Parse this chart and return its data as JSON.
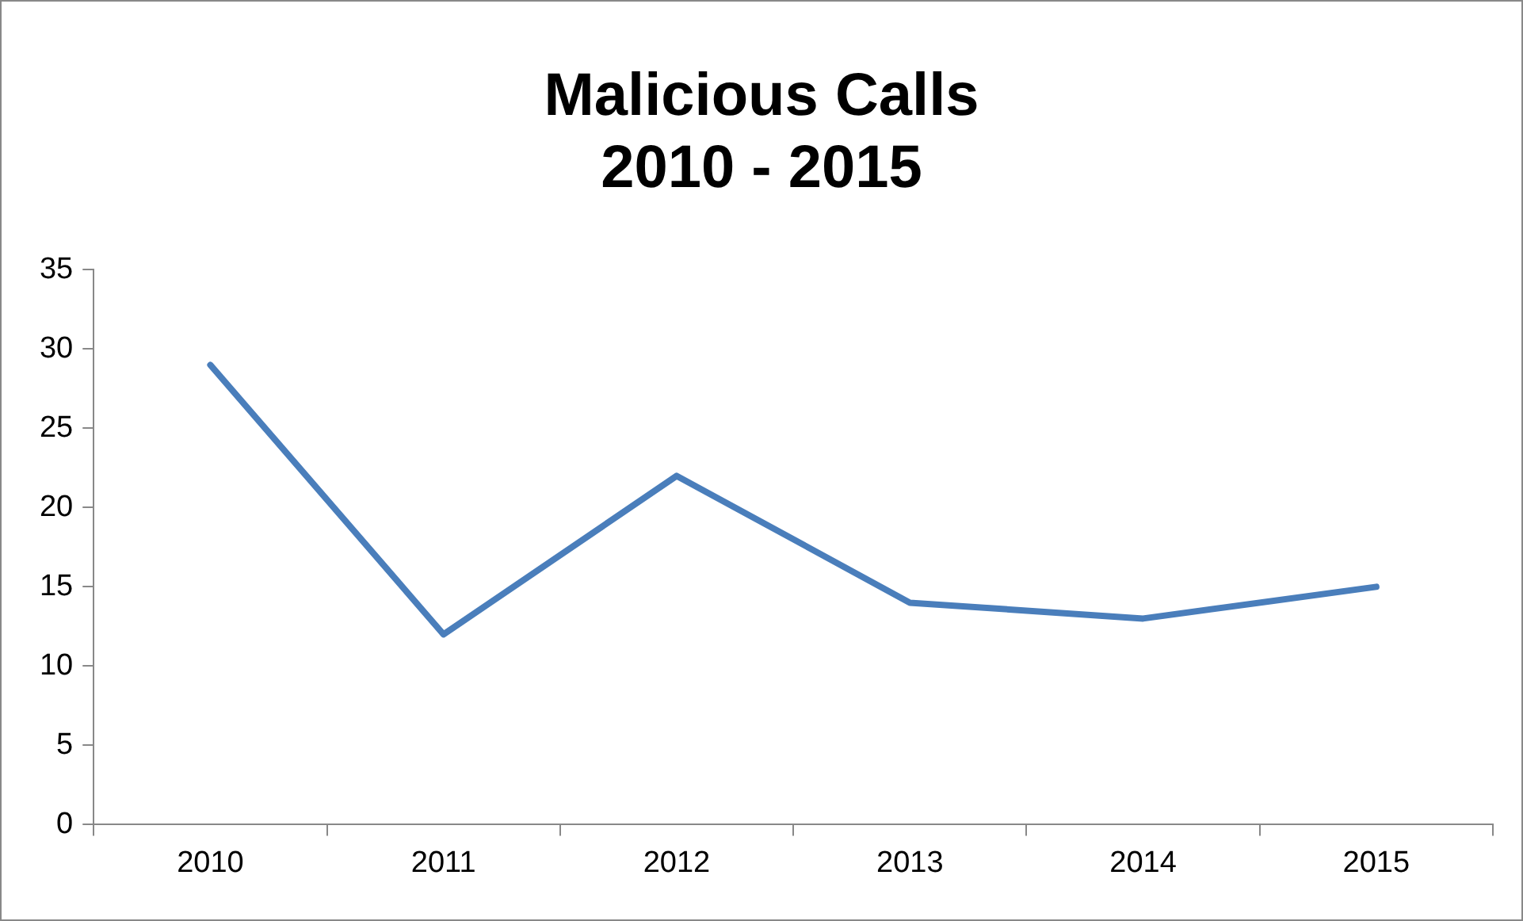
{
  "chart_data": {
    "type": "line",
    "title": "Malicious Calls\n2010 - 2015",
    "categories": [
      "2010",
      "2011",
      "2012",
      "2013",
      "2014",
      "2015"
    ],
    "series": [
      {
        "color": "#4a7ebb",
        "values": [
          29,
          12,
          22,
          14,
          13,
          15
        ]
      }
    ],
    "ylim": [
      0,
      35
    ],
    "yticks": [
      0,
      5,
      10,
      15,
      20,
      25,
      30,
      35
    ],
    "grid": false,
    "legend": false,
    "marker": "none",
    "line_style": "solid"
  }
}
